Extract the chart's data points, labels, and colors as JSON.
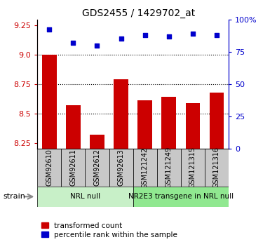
{
  "title": "GDS2455 / 1429702_at",
  "samples": [
    "GSM92610",
    "GSM92611",
    "GSM92612",
    "GSM92613",
    "GSM121242",
    "GSM121249",
    "GSM121315",
    "GSM121316"
  ],
  "transformed_counts": [
    9.0,
    8.57,
    8.32,
    8.79,
    8.61,
    8.64,
    8.59,
    8.68
  ],
  "percentile_ranks": [
    92,
    82,
    80,
    85,
    88,
    87,
    89,
    88
  ],
  "ylim_left": [
    8.2,
    9.3
  ],
  "ylim_right": [
    0,
    100
  ],
  "yticks_left": [
    8.25,
    8.5,
    8.75,
    9.0,
    9.25
  ],
  "yticks_right": [
    0,
    25,
    50,
    75,
    100
  ],
  "ytick_labels_right": [
    "0",
    "25",
    "50",
    "75",
    "100%"
  ],
  "groups": [
    {
      "label": "NRL null",
      "indices": [
        0,
        1,
        2,
        3
      ],
      "color": "#c8f0c8"
    },
    {
      "label": "NR2E3 transgene in NRL null",
      "indices": [
        4,
        5,
        6,
        7
      ],
      "color": "#90e890"
    }
  ],
  "bar_color": "#cc0000",
  "scatter_color": "#0000cc",
  "bar_width": 0.6,
  "grid_color": "#000000",
  "bar_bottom": 8.2,
  "tick_label_color_left": "#cc0000",
  "tick_label_color_right": "#0000cc",
  "title_color": "#000000",
  "strain_label": "strain",
  "legend_items": [
    "transformed count",
    "percentile rank within the sample"
  ],
  "sample_box_color": "#c8c8c8",
  "hgrid_values": [
    8.5,
    8.75,
    9.0
  ]
}
